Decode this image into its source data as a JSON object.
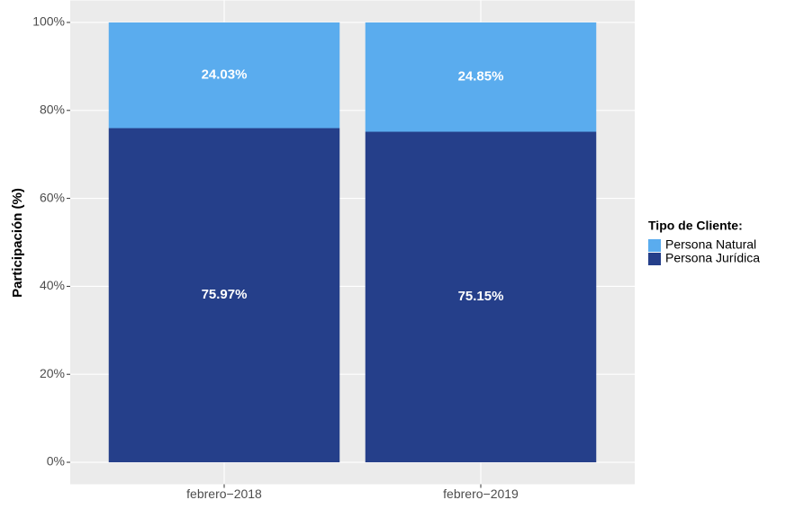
{
  "chart_data": {
    "type": "stacked_bar",
    "y_label": "Participación (%)",
    "legend_title": "Tipo de Cliente:",
    "categories": [
      "febrero−2018",
      "febrero−2019"
    ],
    "series": [
      {
        "name": "Persona Jurídica",
        "color": "#253f8a",
        "values": [
          75.97,
          75.15
        ],
        "value_labels": [
          "75.97%",
          "75.15%"
        ]
      },
      {
        "name": "Persona Natural",
        "color": "#5aacee",
        "values": [
          24.03,
          24.85
        ],
        "value_labels": [
          "24.03%",
          "24.85%"
        ]
      }
    ],
    "ylim": [
      -5,
      105
    ],
    "yticks": [
      {
        "value": 0,
        "label": "0%"
      },
      {
        "value": 20,
        "label": "20%"
      },
      {
        "value": 40,
        "label": "40%"
      },
      {
        "value": 60,
        "label": "60%"
      },
      {
        "value": 80,
        "label": "80%"
      },
      {
        "value": 100,
        "label": "100%"
      }
    ],
    "legend_position": "right",
    "grid": true
  }
}
